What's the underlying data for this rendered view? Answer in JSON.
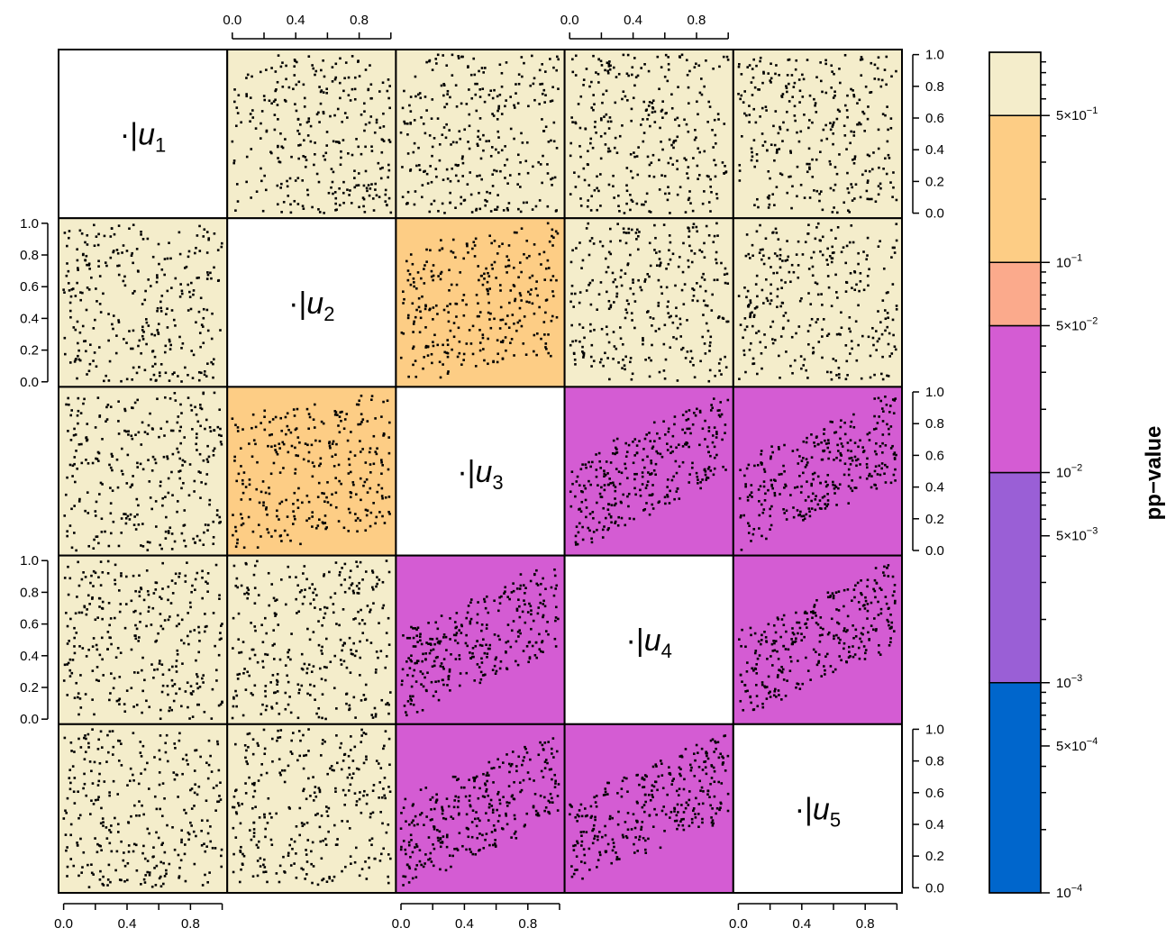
{
  "chart_data": {
    "type": "scatter",
    "description_free": true,
    "variables": [
      "u1",
      "u2",
      "u3",
      "u4",
      "u5"
    ],
    "diagonal_labels": [
      "u1",
      "u2",
      "u3",
      "u4",
      "u5"
    ],
    "diagonal_prefix": "·|",
    "axis_ticks": [
      "0.0",
      "0.2",
      "0.4",
      "0.6",
      "0.8",
      "1.0"
    ],
    "axis_tick_labels_horizontal": [
      "0.0",
      "0.4",
      "0.8"
    ],
    "xlim": [
      0,
      1
    ],
    "ylim": [
      0,
      1
    ],
    "points_per_panel": 300,
    "pvalue_class": [
      [
        null,
        "c6",
        "c6",
        "c6",
        "c6"
      ],
      [
        "c6",
        null,
        "c5",
        "c6",
        "c6"
      ],
      [
        "c6",
        "c5",
        null,
        "c3",
        "c3"
      ],
      [
        "c6",
        "c6",
        "c3",
        null,
        "c3"
      ],
      [
        "c6",
        "c6",
        "c3",
        "c3",
        null
      ]
    ],
    "colorbar": {
      "title": "pp−value",
      "scale": "log",
      "range": [
        0.0001,
        1
      ],
      "bands": [
        {
          "id": "c1",
          "from": 0.0001,
          "to": 0.001,
          "color": "#0066CC"
        },
        {
          "id": "c2",
          "from": 0.001,
          "to": 0.01,
          "color": "#9A5FD6"
        },
        {
          "id": "c3",
          "from": 0.01,
          "to": 0.05,
          "color": "#D45CD3"
        },
        {
          "id": "c4",
          "from": 0.05,
          "to": 0.1,
          "color": "#FBAA8C"
        },
        {
          "id": "c5",
          "from": 0.1,
          "to": 0.5,
          "color": "#FDCD85"
        },
        {
          "id": "c6",
          "from": 0.5,
          "to": 1,
          "color": "#F4EDCB"
        }
      ],
      "labels": [
        {
          "value": 0.5,
          "base": "5×10",
          "exp": "−1"
        },
        {
          "value": 0.1,
          "base": "10",
          "exp": "−1"
        },
        {
          "value": 0.05,
          "base": "5×10",
          "exp": "−2"
        },
        {
          "value": 0.01,
          "base": "10",
          "exp": "−2"
        },
        {
          "value": 0.005,
          "base": "5×10",
          "exp": "−3"
        },
        {
          "value": 0.001,
          "base": "10",
          "exp": "−3"
        },
        {
          "value": 0.0005,
          "base": "5×10",
          "exp": "−4"
        },
        {
          "value": 0.0001,
          "base": "10",
          "exp": "−4"
        }
      ]
    }
  }
}
